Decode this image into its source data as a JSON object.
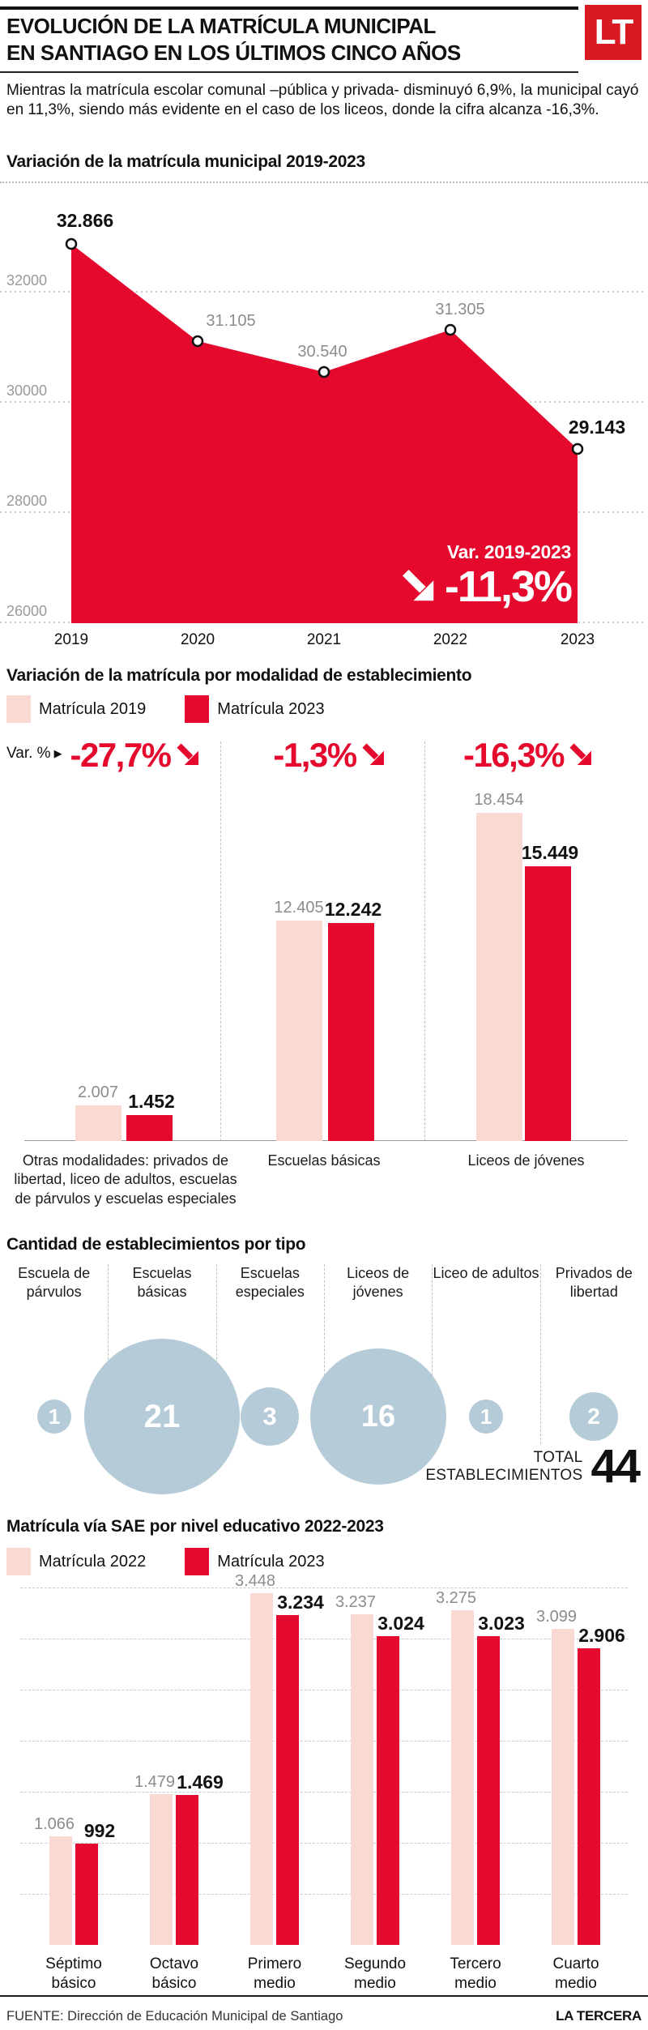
{
  "colors": {
    "red": "#e5092d",
    "pink": "#fad9d2",
    "blue": "#b5cbd8",
    "logo_red": "#da1a23",
    "gray_label": "#8c8c8c",
    "dark": "#111111"
  },
  "header": {
    "logo": "LT",
    "title_line1": "EVOLUCIÓN DE LA MATRÍCULA MUNICIPAL",
    "title_line2": "EN SANTIAGO EN LOS ÚLTIMOS CINCO AÑOS",
    "intro": "Mientras la matrícula escolar comunal –pública y privada- disminuyó 6,9%, la municipal cayó en 11,3%, siendo más evidente en el caso de los liceos, donde la cifra alcanza -16,3%."
  },
  "chart_data": [
    {
      "id": "municipal",
      "type": "area",
      "title": "Variación de la matrícula municipal 2019-2023",
      "x": [
        "2019",
        "2020",
        "2021",
        "2022",
        "2023"
      ],
      "values": [
        32866,
        31105,
        30540,
        31305,
        29143
      ],
      "point_labels": [
        "32.866",
        "31.105",
        "30.540",
        "31.305",
        "29.143"
      ],
      "yticks": [
        32000,
        30000,
        28000,
        26000
      ],
      "ylim": [
        26000,
        33100
      ],
      "grid": "dotted-horizontal",
      "annotation": {
        "label": "Var. 2019-2023",
        "value": "-11,3%"
      }
    },
    {
      "id": "modalidad",
      "type": "bar",
      "title": "Variación de la matrícula por modalidad de establecimiento",
      "categories": [
        "Otras modalidades: privados de libertad, liceo de adultos, escuelas de párvulos y escuelas especiales",
        "Escuelas básicas",
        "Liceos de jóvenes"
      ],
      "series": [
        {
          "name": "Matrícula 2019",
          "values": [
            2007,
            12405,
            18454
          ],
          "labels": [
            "2.007",
            "12.405",
            "18.454"
          ]
        },
        {
          "name": "Matrícula 2023",
          "values": [
            1452,
            12242,
            15449
          ],
          "labels": [
            "1.452",
            "12.242",
            "15.449"
          ]
        }
      ],
      "variation_label": "Var. %",
      "variation_pct": [
        "-27,7%",
        "-1,3%",
        "-16,3%"
      ],
      "ylim": [
        0,
        18454
      ]
    },
    {
      "id": "establecimientos",
      "type": "bubble",
      "title": "Cantidad de establecimientos por tipo",
      "categories": [
        "Escuela de párvulos",
        "Escuelas básicas",
        "Escuelas especiales",
        "Liceos de jóvenes",
        "Liceo de adultos",
        "Privados de libertad"
      ],
      "values": [
        1,
        21,
        3,
        16,
        1,
        2
      ],
      "total_label_line1": "TOTAL",
      "total_label_line2": "ESTABLECIMIENTOS",
      "total_value": "44"
    },
    {
      "id": "sae",
      "type": "bar",
      "title": "Matrícula vía SAE por nivel educativo 2022-2023",
      "categories": [
        "Séptimo básico",
        "Octavo básico",
        "Primero medio",
        "Segundo medio",
        "Tercero medio",
        "Cuarto medio"
      ],
      "series": [
        {
          "name": "Matrícula 2022",
          "values": [
            1066,
            1479,
            3448,
            3237,
            3275,
            3099
          ],
          "labels": [
            "1.066",
            "1.479",
            "3.448",
            "3.237",
            "3.275",
            "3.099"
          ]
        },
        {
          "name": "Matrícula 2023",
          "values": [
            992,
            1469,
            3234,
            3024,
            3023,
            2906
          ],
          "labels": [
            "992",
            "1.469",
            "3.234",
            "3.024",
            "3.023",
            "2.906"
          ]
        }
      ],
      "ylim": [
        0,
        3500
      ],
      "gridline_step": 500
    }
  ],
  "footer": {
    "source": "FUENTE: Dirección de Educación Municipal de Santiago",
    "brand": "LA TERCERA"
  }
}
